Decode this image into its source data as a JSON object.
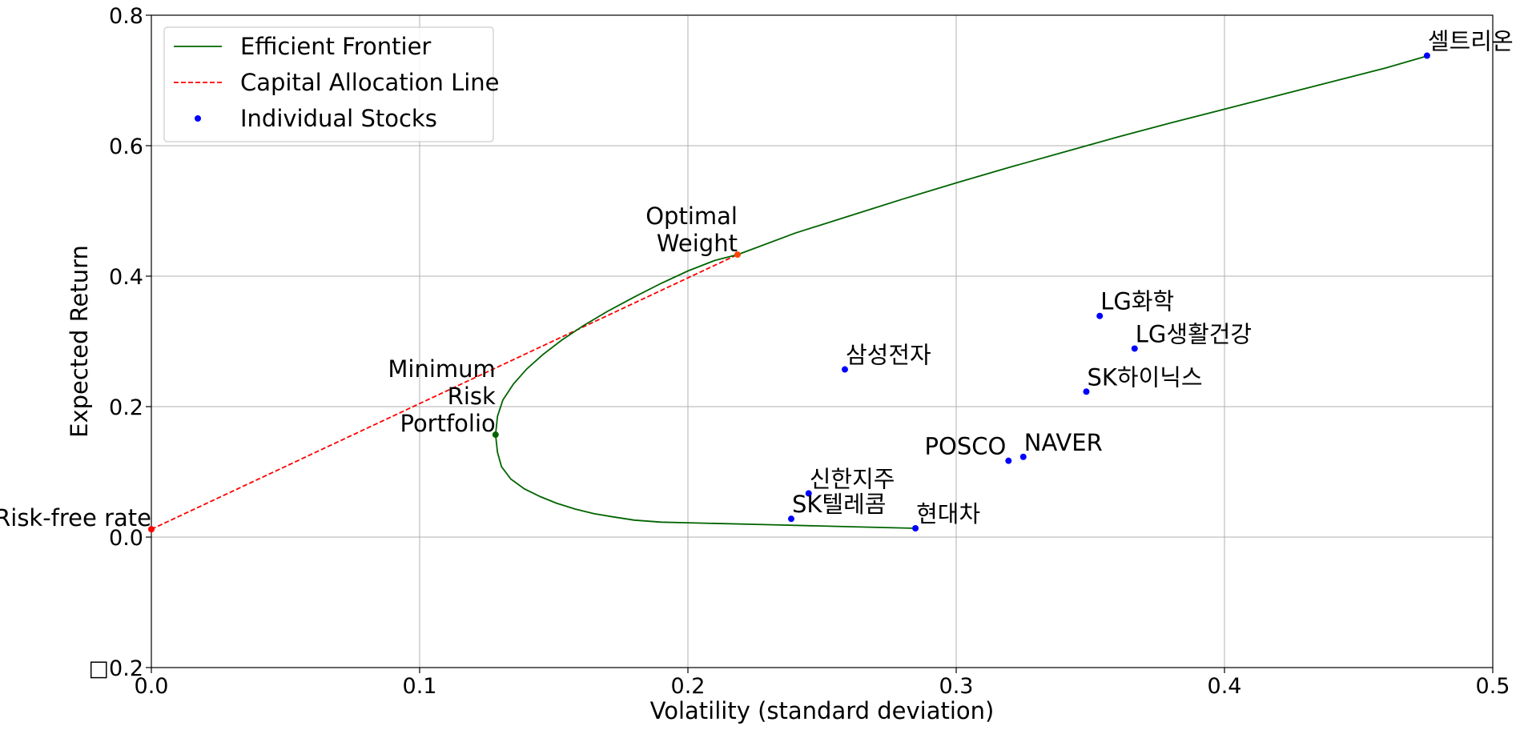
{
  "chart_data": {
    "type": "line",
    "title": "",
    "xlabel": "Volatility (standard deviation)",
    "ylabel": "Expected Return",
    "xlim": [
      0.0,
      0.5
    ],
    "ylim": [
      -0.2,
      0.8
    ],
    "xticks": [
      0.0,
      0.1,
      0.2,
      0.3,
      0.4,
      0.5
    ],
    "xtick_labels": [
      "0.0",
      "0.1",
      "0.2",
      "0.3",
      "0.4",
      "0.5"
    ],
    "yticks": [
      -0.2,
      0.0,
      0.2,
      0.4,
      0.6,
      0.8
    ],
    "ytick_labels": [
      "□0.2",
      "0.0",
      "0.2",
      "0.4",
      "0.6",
      "0.8"
    ],
    "grid": true,
    "legend_position": "top-left",
    "legend": [
      "Efficient Frontier",
      "Capital Allocation Line",
      "Individual Stocks"
    ],
    "colors": {
      "frontier": "#006400",
      "cal": "#ff0000",
      "stocks": "#0000ff",
      "grid": "#b0b0b0"
    },
    "efficient_frontier": {
      "x": [
        0.2848,
        0.26,
        0.23,
        0.2,
        0.19,
        0.18,
        0.172,
        0.165,
        0.158,
        0.151,
        0.145,
        0.139,
        0.134,
        0.1305,
        0.129,
        0.1283,
        0.129,
        0.131,
        0.135,
        0.14,
        0.146,
        0.153,
        0.161,
        0.17,
        0.18,
        0.19,
        0.2,
        0.21,
        0.2185,
        0.225,
        0.24,
        0.26,
        0.28,
        0.3,
        0.32,
        0.34,
        0.36,
        0.38,
        0.4,
        0.42,
        0.44,
        0.46,
        0.476
      ],
      "y": [
        0.0135,
        0.016,
        0.019,
        0.022,
        0.023,
        0.026,
        0.031,
        0.036,
        0.043,
        0.052,
        0.062,
        0.074,
        0.089,
        0.108,
        0.13,
        0.157,
        0.185,
        0.21,
        0.235,
        0.258,
        0.28,
        0.302,
        0.324,
        0.346,
        0.368,
        0.389,
        0.408,
        0.424,
        0.433,
        0.443,
        0.466,
        0.492,
        0.518,
        0.543,
        0.567,
        0.59,
        0.613,
        0.635,
        0.656,
        0.677,
        0.698,
        0.719,
        0.738
      ]
    },
    "capital_allocation_line": {
      "x": [
        0.0,
        0.2185
      ],
      "y": [
        0.012,
        0.433
      ]
    },
    "special_points": [
      {
        "name": "Risk-free rate",
        "label": "Risk-free rate",
        "x": 0.0,
        "y": 0.012,
        "color": "#ff0000"
      },
      {
        "name": "Minimum Risk Portfolio",
        "label": [
          "Minimum",
          "Risk",
          "Portfolio"
        ],
        "x": 0.1283,
        "y": 0.157,
        "color": "#006400"
      },
      {
        "name": "Optimal Weight",
        "label": [
          "Optimal",
          "Weight"
        ],
        "x": 0.2185,
        "y": 0.433,
        "color": "#ff4500"
      }
    ],
    "stocks": [
      {
        "label": "셀트리온",
        "x": 0.4755,
        "y": 0.738
      },
      {
        "label": "LG화학",
        "x": 0.3535,
        "y": 0.339
      },
      {
        "label": "LG생활건강",
        "x": 0.3665,
        "y": 0.289
      },
      {
        "label": "SK하이닉스",
        "x": 0.3485,
        "y": 0.223
      },
      {
        "label": "삼성전자",
        "x": 0.2585,
        "y": 0.257
      },
      {
        "label": "NAVER",
        "x": 0.325,
        "y": 0.123
      },
      {
        "label": "POSCO",
        "x": 0.3195,
        "y": 0.117
      },
      {
        "label": "신한지주",
        "x": 0.245,
        "y": 0.067
      },
      {
        "label": "SK텔레콤",
        "x": 0.2385,
        "y": 0.028
      },
      {
        "label": "현대차",
        "x": 0.2848,
        "y": 0.0135
      }
    ]
  }
}
